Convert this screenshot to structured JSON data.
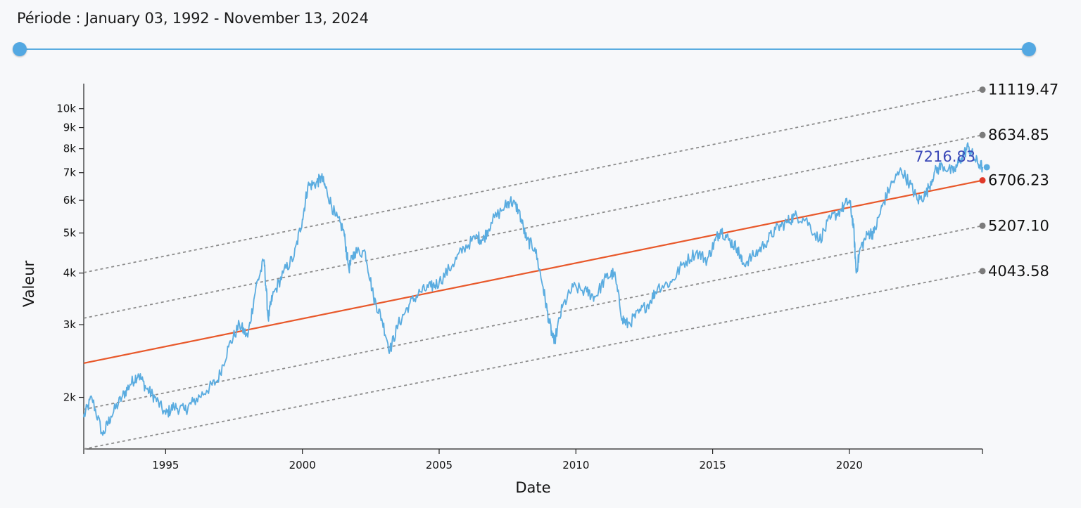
{
  "header": {
    "period_label": "Période : January 03, 1992 - November 13, 2024"
  },
  "slider": {
    "range_start": "1992-01-03",
    "range_end": "2024-11-13",
    "start_fraction": 0,
    "end_fraction": 1,
    "color": "#53a8e2"
  },
  "chart_data": {
    "type": "line",
    "title": "",
    "xlabel": "Date",
    "ylabel": "Valeur",
    "y_scale": "log",
    "x_range": [
      "1992-01-03",
      "2024-11-13"
    ],
    "ylim": [
      1500,
      11500
    ],
    "grid": false,
    "x_ticks": [
      {
        "year": 1995,
        "label": "1995"
      },
      {
        "year": 2000,
        "label": "2000"
      },
      {
        "year": 2005,
        "label": "2005"
      },
      {
        "year": 2010,
        "label": "2010"
      },
      {
        "year": 2015,
        "label": "2015"
      },
      {
        "year": 2020,
        "label": "2020"
      }
    ],
    "y_ticks": [
      {
        "value": 2000,
        "label": "2k"
      },
      {
        "value": 3000,
        "label": "3k"
      },
      {
        "value": 4000,
        "label": "4k"
      },
      {
        "value": 5000,
        "label": "5k"
      },
      {
        "value": 6000,
        "label": "6k"
      },
      {
        "value": 7000,
        "label": "7k"
      },
      {
        "value": 8000,
        "label": "8k"
      },
      {
        "value": 9000,
        "label": "9k"
      },
      {
        "value": 10000,
        "label": "10k"
      }
    ],
    "series": [
      {
        "color": "#5aace0",
        "points": [
          [
            1992.0,
            1790
          ],
          [
            1992.3,
            2000
          ],
          [
            1992.7,
            1620
          ],
          [
            1993.0,
            1800
          ],
          [
            1993.4,
            2000
          ],
          [
            1993.7,
            2150
          ],
          [
            1994.0,
            2280
          ],
          [
            1994.3,
            2100
          ],
          [
            1994.6,
            2000
          ],
          [
            1995.0,
            1820
          ],
          [
            1995.3,
            1900
          ],
          [
            1995.7,
            1860
          ],
          [
            1996.0,
            1950
          ],
          [
            1996.5,
            2080
          ],
          [
            1996.9,
            2200
          ],
          [
            1997.3,
            2650
          ],
          [
            1997.7,
            3000
          ],
          [
            1998.0,
            2800
          ],
          [
            1998.3,
            3700
          ],
          [
            1998.6,
            4300
          ],
          [
            1998.75,
            3100
          ],
          [
            1998.9,
            3500
          ],
          [
            1999.3,
            4000
          ],
          [
            1999.7,
            4400
          ],
          [
            2000.0,
            5400
          ],
          [
            2000.2,
            6500
          ],
          [
            2000.5,
            6600
          ],
          [
            2000.7,
            6800
          ],
          [
            2000.9,
            6300
          ],
          [
            2001.2,
            5500
          ],
          [
            2001.5,
            5100
          ],
          [
            2001.7,
            4100
          ],
          [
            2001.9,
            4500
          ],
          [
            2002.3,
            4500
          ],
          [
            2002.6,
            3500
          ],
          [
            2002.9,
            3100
          ],
          [
            2003.2,
            2600
          ],
          [
            2003.5,
            3000
          ],
          [
            2003.9,
            3350
          ],
          [
            2004.3,
            3600
          ],
          [
            2004.7,
            3700
          ],
          [
            2005.0,
            3800
          ],
          [
            2005.5,
            4200
          ],
          [
            2005.9,
            4600
          ],
          [
            2006.4,
            4900
          ],
          [
            2006.6,
            4800
          ],
          [
            2006.9,
            5300
          ],
          [
            2007.4,
            5800
          ],
          [
            2007.6,
            6000
          ],
          [
            2007.9,
            5700
          ],
          [
            2008.2,
            4800
          ],
          [
            2008.5,
            4600
          ],
          [
            2008.8,
            3700
          ],
          [
            2009.0,
            3100
          ],
          [
            2009.2,
            2700
          ],
          [
            2009.5,
            3300
          ],
          [
            2009.9,
            3700
          ],
          [
            2010.4,
            3600
          ],
          [
            2010.7,
            3500
          ],
          [
            2011.1,
            3900
          ],
          [
            2011.4,
            4000
          ],
          [
            2011.7,
            3100
          ],
          [
            2011.9,
            3000
          ],
          [
            2012.3,
            3200
          ],
          [
            2012.7,
            3400
          ],
          [
            2013.0,
            3700
          ],
          [
            2013.5,
            3800
          ],
          [
            2013.9,
            4200
          ],
          [
            2014.4,
            4500
          ],
          [
            2014.8,
            4300
          ],
          [
            2015.1,
            4800
          ],
          [
            2015.3,
            5100
          ],
          [
            2015.6,
            4800
          ],
          [
            2015.9,
            4600
          ],
          [
            2016.1,
            4200
          ],
          [
            2016.5,
            4400
          ],
          [
            2016.9,
            4700
          ],
          [
            2017.3,
            5100
          ],
          [
            2017.7,
            5300
          ],
          [
            2018.0,
            5500
          ],
          [
            2018.4,
            5400
          ],
          [
            2018.9,
            4800
          ],
          [
            2019.3,
            5400
          ],
          [
            2019.7,
            5700
          ],
          [
            2020.0,
            6000
          ],
          [
            2020.15,
            5200
          ],
          [
            2020.25,
            4000
          ],
          [
            2020.4,
            4600
          ],
          [
            2020.7,
            5000
          ],
          [
            2020.9,
            5000
          ],
          [
            2021.2,
            5800
          ],
          [
            2021.5,
            6500
          ],
          [
            2021.9,
            7100
          ],
          [
            2022.2,
            6600
          ],
          [
            2022.5,
            6000
          ],
          [
            2022.8,
            6200
          ],
          [
            2023.1,
            7000
          ],
          [
            2023.4,
            7300
          ],
          [
            2023.8,
            7000
          ],
          [
            2024.1,
            7600
          ],
          [
            2024.35,
            8100
          ],
          [
            2024.6,
            7500
          ],
          [
            2024.87,
            7216.83
          ]
        ],
        "last_value_label": "7216.83"
      }
    ],
    "trend_lines": [
      {
        "kind": "regression",
        "color": "#e8582a",
        "dash": "solid",
        "y_start": 2420,
        "y_end": 6706.23,
        "end_label": "6706.23",
        "end_marker_color": "#e03a2a"
      },
      {
        "kind": "upper-2",
        "color": "#8c8c8c",
        "dash": "dotted",
        "y_start": 4010,
        "y_end": 11119.47,
        "end_label": "11119.47",
        "end_marker_color": "#7b7b7b"
      },
      {
        "kind": "upper-1",
        "color": "#8c8c8c",
        "dash": "dotted",
        "y_start": 3110,
        "y_end": 8634.85,
        "end_label": "8634.85",
        "end_marker_color": "#7b7b7b"
      },
      {
        "kind": "lower-1",
        "color": "#8c8c8c",
        "dash": "dotted",
        "y_start": 1870,
        "y_end": 5207.1,
        "end_label": "5207.10",
        "end_marker_color": "#7b7b7b"
      },
      {
        "kind": "lower-2",
        "color": "#8c8c8c",
        "dash": "dotted",
        "y_start": 1500,
        "y_end": 4043.58,
        "end_label": "4043.58",
        "end_marker_color": "#7b7b7b"
      }
    ]
  }
}
